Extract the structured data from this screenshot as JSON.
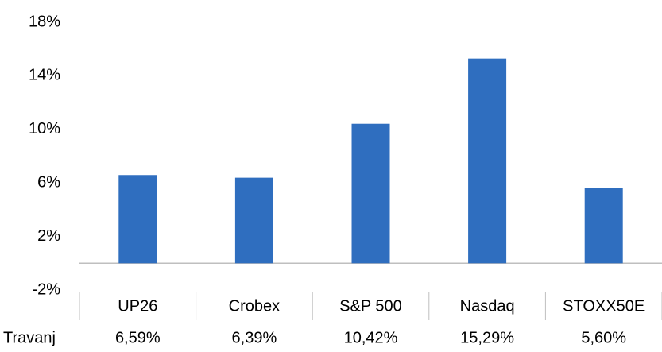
{
  "chart_data": {
    "type": "bar",
    "categories": [
      "UP26",
      "Crobex",
      "S&P 500",
      "Nasdaq",
      "STOXX50E"
    ],
    "series": [
      {
        "name": "Travanj",
        "color": "#2f6ebf",
        "values": [
          6.59,
          6.39,
          10.42,
          15.29,
          5.6
        ],
        "value_labels": [
          "6,59%",
          "6,39%",
          "10,42%",
          "15,29%",
          "5,60%"
        ]
      }
    ],
    "ylim": [
      -2,
      18
    ],
    "yticks": [
      {
        "value": -2,
        "label": "-2%"
      },
      {
        "value": 2,
        "label": "2%"
      },
      {
        "value": 6,
        "label": "6%"
      },
      {
        "value": 10,
        "label": "10%"
      },
      {
        "value": 14,
        "label": "14%"
      },
      {
        "value": 18,
        "label": "18%"
      }
    ],
    "grid": false
  }
}
